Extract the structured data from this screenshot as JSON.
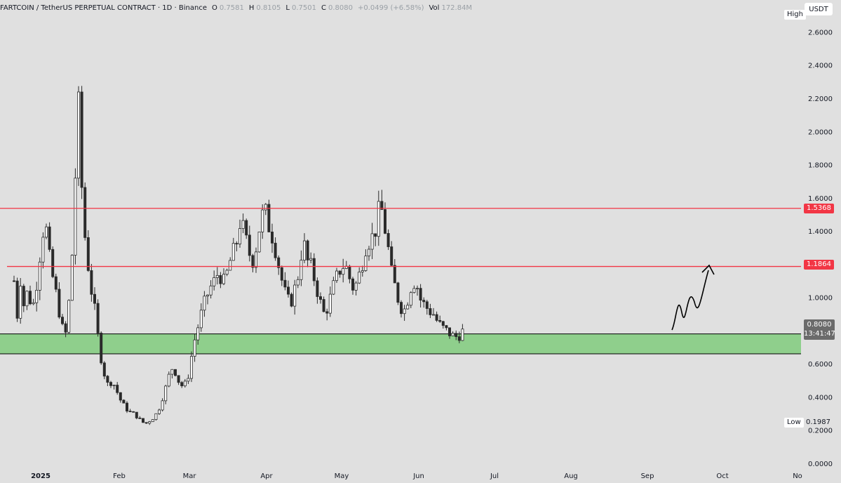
{
  "header": {
    "symbol": "FARTCOIN / TetherUS PERPETUAL CONTRACT · 1D · Binance",
    "o_label": "O",
    "o_value": "0.7581",
    "h_label": "H",
    "h_value": "0.8105",
    "l_label": "L",
    "l_value": "0.7501",
    "c_label": "C",
    "c_value": "0.8080",
    "change": "+0.0499 (+6.58%)",
    "vol_label": "Vol",
    "vol_value": "172.84M"
  },
  "currency_button": "USDT",
  "high_label": "High",
  "low_label": "Low",
  "low_value": "0.1987",
  "price_tag": "0.8080",
  "countdown": "13:41:47",
  "level_tags": [
    "1.5368",
    "1.1864"
  ],
  "colors": {
    "background": "#e0e0e0",
    "candle": "#2a2a2a",
    "resistance": "#f23645",
    "support_zone": "#8fcf8c",
    "price_tag": "#6b6b6b"
  },
  "chart_data": {
    "type": "candlestick",
    "x_tick_labels": [
      "2025",
      "Feb",
      "Mar",
      "Apr",
      "May",
      "Jun",
      "Jul",
      "Aug",
      "Sep",
      "Oct",
      "No"
    ],
    "y_tick_labels": [
      "0.0000",
      "0.2000",
      "0.4000",
      "0.6000",
      "1.0000",
      "1.2000",
      "1.4000",
      "1.6000",
      "1.8000",
      "2.0000",
      "2.2000",
      "2.4000",
      "2.6000"
    ],
    "ylim": [
      0,
      2.75
    ],
    "horizontal_lines": [
      {
        "price": 1.5368,
        "color": "#f23645"
      },
      {
        "price": 1.1864,
        "color": "#f23645"
      }
    ],
    "support_zone": [
      0.66,
      0.78
    ],
    "last_price": 0.808,
    "price_low": 0.1987,
    "close_path": [
      [
        0,
        1.1
      ],
      [
        4,
        0.85
      ],
      [
        8,
        1.15
      ],
      [
        14,
        0.95
      ],
      [
        20,
        1.05
      ],
      [
        26,
        0.92
      ],
      [
        32,
        1.08
      ],
      [
        38,
        1.3
      ],
      [
        44,
        1.48
      ],
      [
        50,
        1.25
      ],
      [
        56,
        1.1
      ],
      [
        62,
        0.98
      ],
      [
        68,
        0.82
      ],
      [
        74,
        0.78
      ],
      [
        80,
        1.05
      ],
      [
        84,
        1.35
      ],
      [
        88,
        1.8
      ],
      [
        92,
        2.15
      ],
      [
        95,
        1.85
      ],
      [
        98,
        1.5
      ],
      [
        104,
        1.25
      ],
      [
        110,
        1.05
      ],
      [
        116,
        0.9
      ],
      [
        122,
        0.68
      ],
      [
        128,
        0.55
      ],
      [
        134,
        0.47
      ],
      [
        140,
        0.5
      ],
      [
        146,
        0.44
      ],
      [
        152,
        0.38
      ],
      [
        158,
        0.34
      ],
      [
        164,
        0.31
      ],
      [
        170,
        0.3
      ],
      [
        176,
        0.28
      ],
      [
        182,
        0.25
      ],
      [
        188,
        0.24
      ],
      [
        194,
        0.26
      ],
      [
        200,
        0.28
      ],
      [
        206,
        0.32
      ],
      [
        212,
        0.4
      ],
      [
        218,
        0.48
      ],
      [
        224,
        0.58
      ],
      [
        230,
        0.55
      ],
      [
        236,
        0.48
      ],
      [
        242,
        0.46
      ],
      [
        248,
        0.52
      ],
      [
        252,
        0.62
      ],
      [
        256,
        0.72
      ],
      [
        262,
        0.82
      ],
      [
        268,
        0.92
      ],
      [
        274,
        1.0
      ],
      [
        280,
        1.06
      ],
      [
        286,
        1.1
      ],
      [
        292,
        1.16
      ],
      [
        298,
        1.08
      ],
      [
        304,
        1.15
      ],
      [
        310,
        1.25
      ],
      [
        316,
        1.3
      ],
      [
        322,
        1.45
      ],
      [
        328,
        1.4
      ],
      [
        334,
        1.28
      ],
      [
        340,
        1.22
      ],
      [
        346,
        1.32
      ],
      [
        352,
        1.48
      ],
      [
        358,
        1.52
      ],
      [
        364,
        1.42
      ],
      [
        370,
        1.35
      ],
      [
        376,
        1.22
      ],
      [
        382,
        1.1
      ],
      [
        388,
        1.0
      ],
      [
        394,
        0.96
      ],
      [
        400,
        1.05
      ],
      [
        406,
        1.15
      ],
      [
        412,
        1.35
      ],
      [
        418,
        1.22
      ],
      [
        424,
        1.18
      ],
      [
        430,
        1.08
      ],
      [
        436,
        0.98
      ],
      [
        442,
        0.9
      ],
      [
        448,
        0.95
      ],
      [
        454,
        1.05
      ],
      [
        460,
        1.12
      ],
      [
        466,
        1.18
      ],
      [
        472,
        1.2
      ],
      [
        478,
        1.12
      ],
      [
        484,
        1.05
      ],
      [
        490,
        1.1
      ],
      [
        496,
        1.2
      ],
      [
        502,
        1.32
      ],
      [
        508,
        1.35
      ],
      [
        514,
        1.38
      ],
      [
        518,
        1.48
      ],
      [
        522,
        1.55
      ],
      [
        526,
        1.5
      ],
      [
        530,
        1.38
      ],
      [
        534,
        1.28
      ],
      [
        538,
        1.15
      ],
      [
        544,
        1.05
      ],
      [
        550,
        0.95
      ],
      [
        556,
        0.92
      ],
      [
        562,
        1.0
      ],
      [
        568,
        1.1
      ],
      [
        574,
        1.08
      ],
      [
        580,
        0.98
      ],
      [
        586,
        0.95
      ],
      [
        592,
        0.92
      ],
      [
        598,
        0.9
      ],
      [
        604,
        0.85
      ],
      [
        610,
        0.82
      ],
      [
        616,
        0.8
      ],
      [
        622,
        0.78
      ],
      [
        628,
        0.76
      ],
      [
        634,
        0.77
      ],
      [
        638,
        0.79
      ],
      [
        643,
        0.808
      ]
    ]
  }
}
